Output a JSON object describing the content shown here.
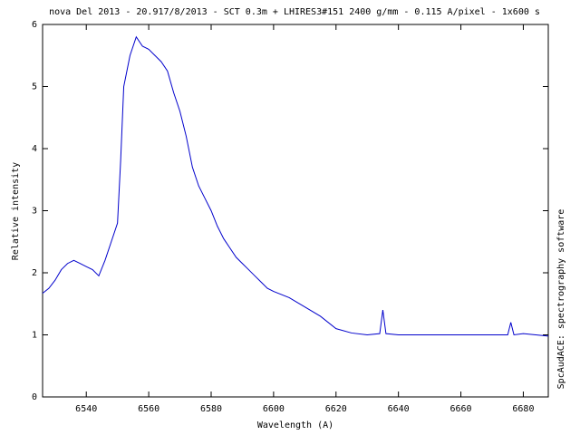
{
  "chart_data": {
    "type": "line",
    "title": "nova Del 2013 - 20.917/8/2013 - SCT 0.3m + LHIRES3#151 2400 g/mm - 0.115 A/pixel - 1x600 s",
    "x_label": "Wavelength (A)",
    "y_label": "Relative intensity",
    "side_label": "SpcAudACE: spectrography software",
    "x": [
      6526,
      6528,
      6530,
      6532,
      6534,
      6536,
      6538,
      6540,
      6542,
      6544,
      6546,
      6548,
      6550,
      6551,
      6552,
      6554,
      6556,
      6558,
      6560,
      6562,
      6564,
      6566,
      6568,
      6570,
      6572,
      6574,
      6576,
      6578,
      6580,
      6582,
      6584,
      6586,
      6588,
      6590,
      6592,
      6594,
      6596,
      6598,
      6600,
      6605,
      6610,
      6615,
      6620,
      6625,
      6630,
      6634,
      6635,
      6636,
      6640,
      6650,
      6660,
      6670,
      6675,
      6676,
      6677,
      6680,
      6688
    ],
    "series": [
      {
        "name": "spectrum",
        "color": "#0000cc",
        "values": [
          1.67,
          1.75,
          1.88,
          2.05,
          2.15,
          2.2,
          2.15,
          2.1,
          2.05,
          1.95,
          2.2,
          2.5,
          2.8,
          3.8,
          5.0,
          5.5,
          5.8,
          5.65,
          5.6,
          5.5,
          5.4,
          5.25,
          4.9,
          4.6,
          4.2,
          3.7,
          3.4,
          3.2,
          3.0,
          2.75,
          2.55,
          2.4,
          2.25,
          2.15,
          2.05,
          1.95,
          1.85,
          1.75,
          1.7,
          1.6,
          1.45,
          1.3,
          1.1,
          1.03,
          1.0,
          1.02,
          1.4,
          1.02,
          1.0,
          1.0,
          1.0,
          1.0,
          1.0,
          1.2,
          1.0,
          1.02,
          0.98
        ]
      }
    ],
    "xlim": [
      6526,
      6688
    ],
    "xticks": [
      6540,
      6560,
      6580,
      6600,
      6620,
      6640,
      6660,
      6680
    ],
    "ylim": [
      0,
      6
    ],
    "yticks": [
      0,
      1,
      2,
      3,
      4,
      5,
      6
    ]
  }
}
